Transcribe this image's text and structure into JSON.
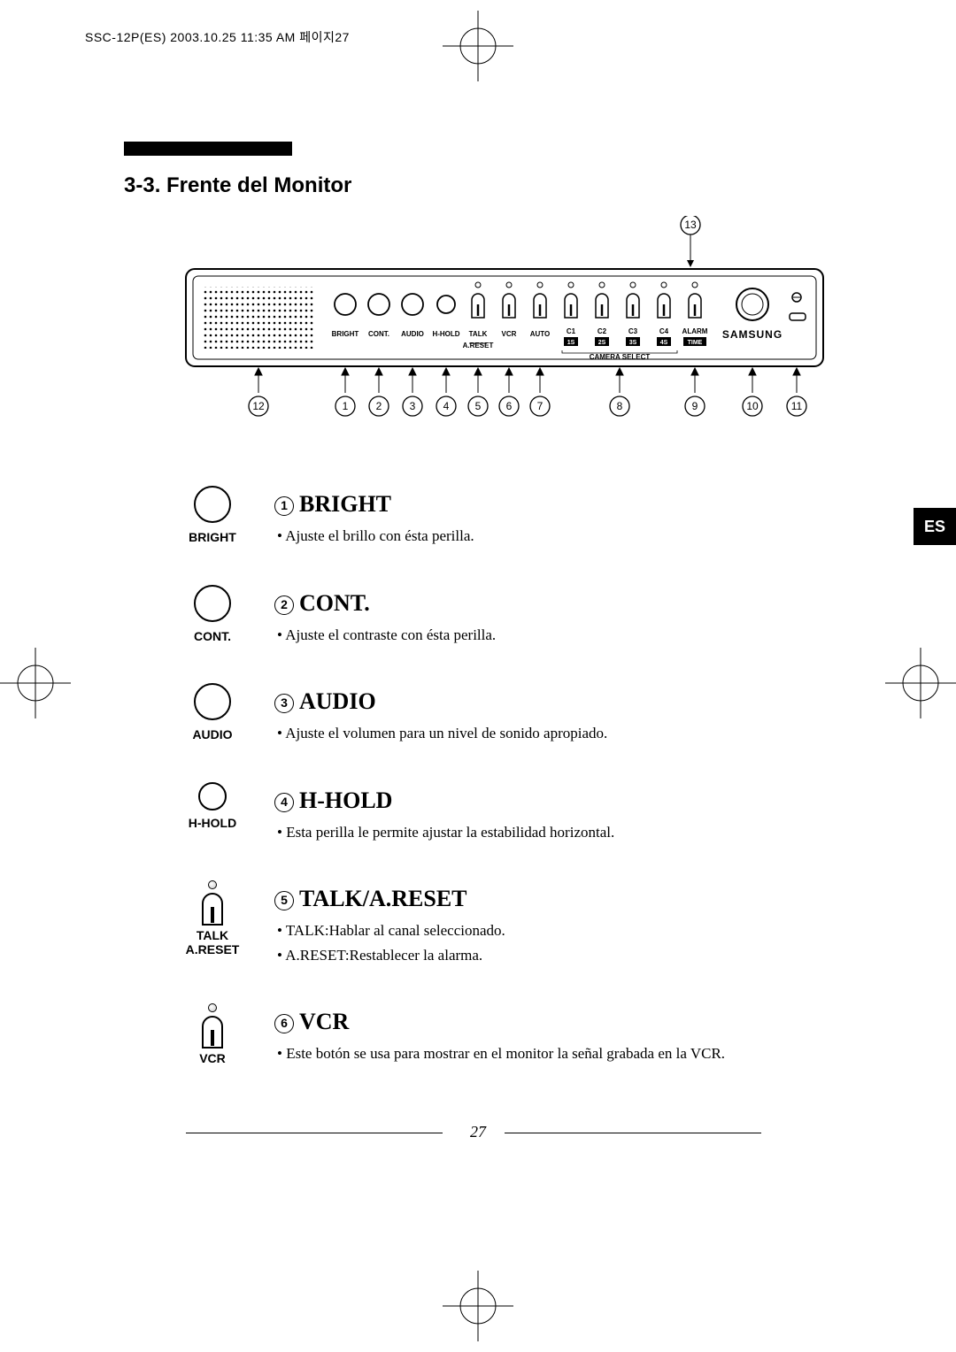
{
  "header": "SSC-12P(ES)  2003.10.25 11:35 AM  페이지27",
  "section_title": "3-3. Frente del Monitor",
  "lang_tab": "ES",
  "page_number": "27",
  "panel": {
    "knobs": [
      "BRIGHT",
      "CONT.",
      "AUDIO",
      "H-HOLD"
    ],
    "switches": [
      "TALK",
      "VCR",
      "AUTO"
    ],
    "a_reset": "A.RESET",
    "camera_select": "CAMERA SELECT",
    "cameras_top": [
      "C1",
      "C2",
      "C3",
      "C4"
    ],
    "cameras_bot": [
      "1S",
      "2S",
      "3S",
      "4S"
    ],
    "alarm": "ALARM",
    "time": "TIME",
    "brand": "SAMSUNG",
    "callouts": [
      "1",
      "2",
      "3",
      "4",
      "5",
      "6",
      "7",
      "8",
      "9",
      "10",
      "11",
      "12",
      "13"
    ]
  },
  "items": [
    {
      "num": "1",
      "label": "BRIGHT",
      "title": "BRIGHT",
      "icon": "knob",
      "bullets": [
        "Ajuste el brillo con ésta perilla."
      ]
    },
    {
      "num": "2",
      "label": "CONT.",
      "title": "CONT.",
      "icon": "knob",
      "bullets": [
        "Ajuste el contraste con ésta perilla."
      ]
    },
    {
      "num": "3",
      "label": "AUDIO",
      "title": "AUDIO",
      "icon": "knob",
      "bullets": [
        "Ajuste el volumen para un nivel de sonido apropiado."
      ]
    },
    {
      "num": "4",
      "label": "H-HOLD",
      "title": "H-HOLD",
      "icon": "knob-small",
      "bullets": [
        "Esta perilla le permite ajustar la estabilidad horizontal."
      ]
    },
    {
      "num": "5",
      "label": "TALK\nA.RESET",
      "title": "TALK/A.RESET",
      "icon": "switch",
      "bullets": [
        "TALK:Hablar al canal seleccionado.",
        "A.RESET:Restablecer la alarma."
      ]
    },
    {
      "num": "6",
      "label": "VCR",
      "title": "VCR",
      "icon": "switch",
      "bullets": [
        "Este botón se usa para mostrar en el monitor la señal grabada en la VCR."
      ]
    }
  ]
}
